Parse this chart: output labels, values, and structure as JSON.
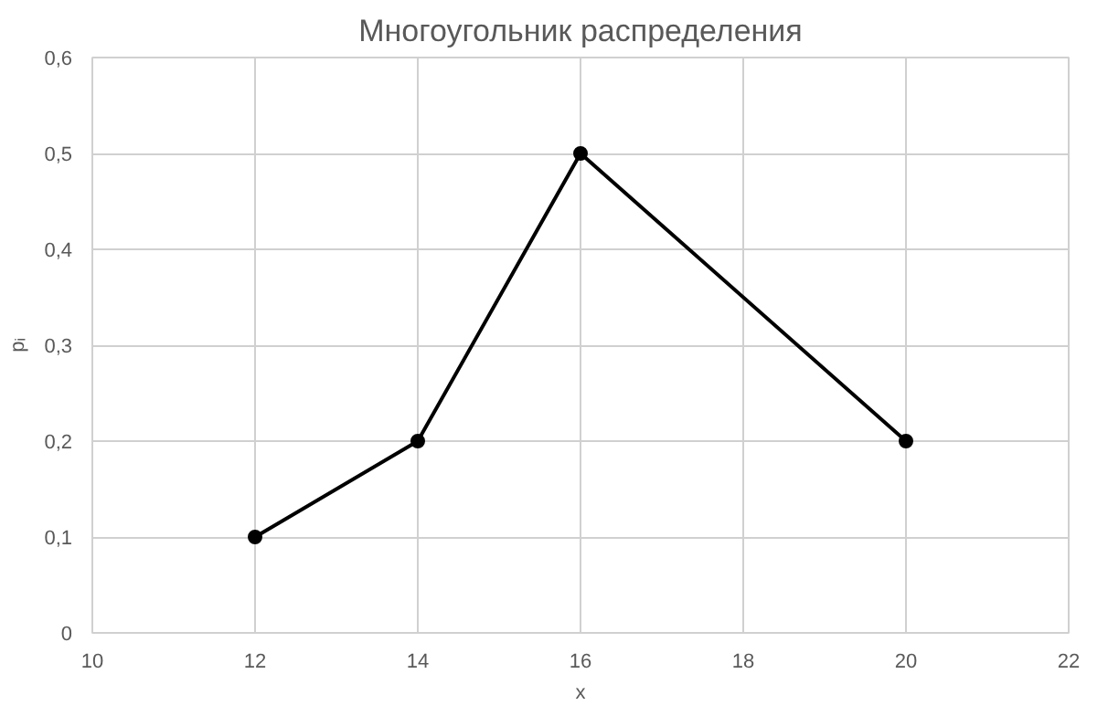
{
  "chart_data": {
    "type": "line",
    "title": "Многоугольник распределения",
    "xlabel": "x",
    "ylabel": "pᵢ",
    "x": [
      12,
      14,
      16,
      20
    ],
    "series": [
      {
        "color": "#000000",
        "values": [
          0.1,
          0.2,
          0.5,
          0.2
        ]
      }
    ],
    "xlim": [
      10,
      22
    ],
    "xticks": [
      10,
      12,
      14,
      16,
      18,
      20,
      22
    ],
    "ylim": [
      0,
      0.6
    ],
    "yticks": [
      {
        "value": 0,
        "label": "0"
      },
      {
        "value": 0.1,
        "label": "0,1"
      },
      {
        "value": 0.2,
        "label": "0,2"
      },
      {
        "value": 0.3,
        "label": "0,3"
      },
      {
        "value": 0.4,
        "label": "0,4"
      },
      {
        "value": 0.5,
        "label": "0,5"
      },
      {
        "value": 0.6,
        "label": "0,6"
      }
    ],
    "grid": true,
    "marker": "circle",
    "line_style": "solid"
  }
}
